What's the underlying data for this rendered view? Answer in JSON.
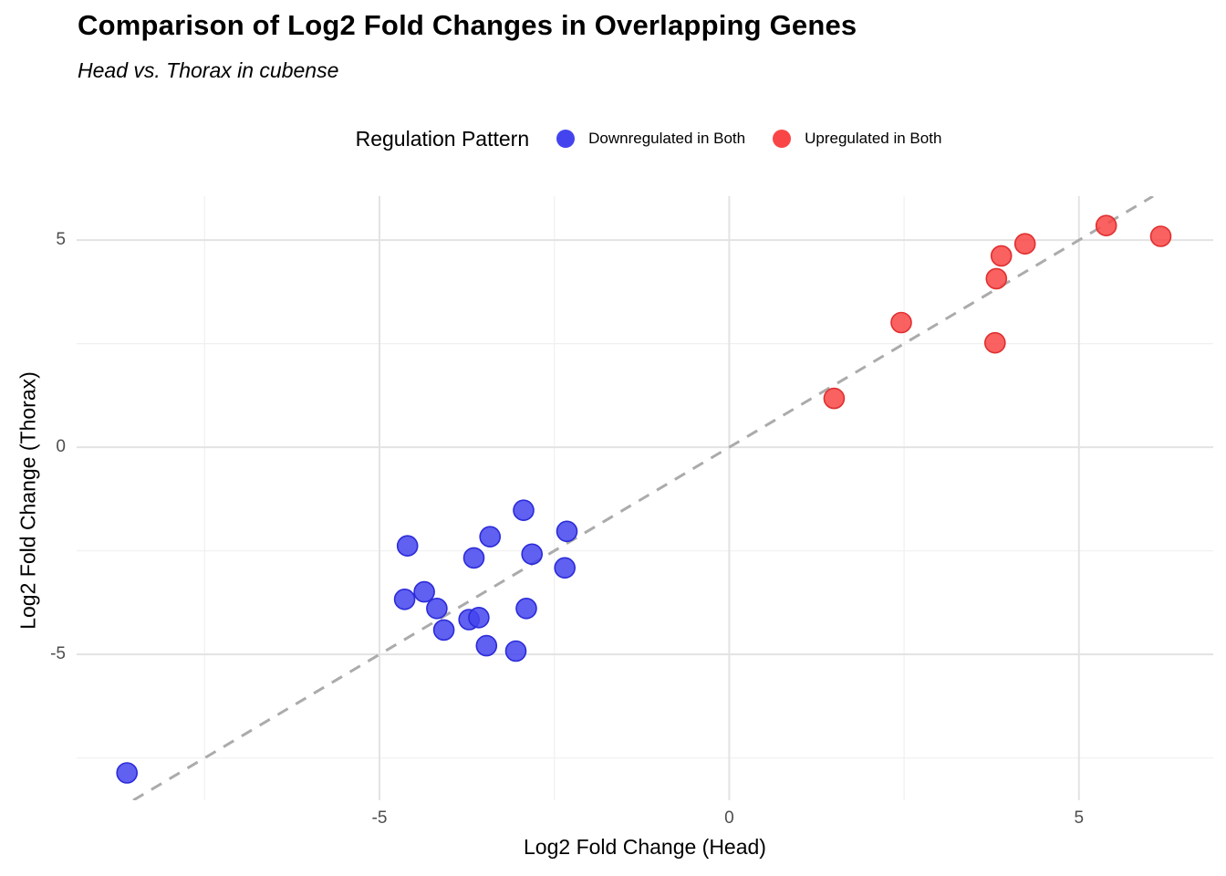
{
  "title": "Comparison of Log2 Fold Changes in Overlapping Genes",
  "subtitle": "Head vs. Thorax in cubense",
  "legend": {
    "title": "Regulation Pattern",
    "items": [
      {
        "label": "Downregulated in Both",
        "color": "#4444ef",
        "stroke": "#2b2bd9"
      },
      {
        "label": "Upregulated in Both",
        "color": "#f94545",
        "stroke": "#e02f2f"
      }
    ]
  },
  "colors": {
    "grid_major": "#e3e3e3",
    "grid_minor": "#f0f0f0",
    "reference_line": "#ababab",
    "tick_text": "#4d4d4d"
  },
  "chart_data": {
    "type": "scatter",
    "title": "Comparison of Log2 Fold Changes in Overlapping Genes",
    "subtitle": "Head vs. Thorax in cubense",
    "xlabel": "Log2 Fold Change (Head)",
    "ylabel": "Log2 Fold Change (Thorax)",
    "xlim": [
      -9.33,
      6.92
    ],
    "ylim": [
      -8.52,
      6.06
    ],
    "x_major_ticks": [
      -5,
      0,
      5
    ],
    "y_major_ticks": [
      -5,
      0,
      5
    ],
    "x_minor_ticks": [
      -7.5,
      -2.5,
      2.5
    ],
    "y_minor_ticks": [
      -7.5,
      -2.5,
      2.5
    ],
    "grid": true,
    "legend_position": "top",
    "point_radius_px": 11,
    "reference_line": {
      "type": "identity y = x",
      "style": "dashed"
    },
    "series": [
      {
        "name": "Downregulated in Both",
        "color": "#4444ef",
        "points": [
          [
            -8.61,
            -7.86
          ],
          [
            -4.64,
            -3.67
          ],
          [
            -4.6,
            -2.38
          ],
          [
            -4.36,
            -3.49
          ],
          [
            -4.18,
            -3.89
          ],
          [
            -4.08,
            -4.41
          ],
          [
            -3.72,
            -4.16
          ],
          [
            -3.65,
            -2.67
          ],
          [
            -3.58,
            -4.11
          ],
          [
            -3.47,
            -4.79
          ],
          [
            -3.42,
            -2.16
          ],
          [
            -3.05,
            -4.92
          ],
          [
            -2.94,
            -1.52
          ],
          [
            -2.9,
            -3.89
          ],
          [
            -2.82,
            -2.58
          ],
          [
            -2.35,
            -2.91
          ],
          [
            -2.32,
            -2.03
          ]
        ]
      },
      {
        "name": "Upregulated in Both",
        "color": "#f94545",
        "points": [
          [
            1.5,
            1.18
          ],
          [
            2.46,
            3.01
          ],
          [
            3.8,
            2.52
          ],
          [
            3.82,
            4.07
          ],
          [
            3.89,
            4.62
          ],
          [
            4.23,
            4.91
          ],
          [
            5.39,
            5.35
          ],
          [
            6.17,
            5.09
          ]
        ]
      }
    ]
  }
}
